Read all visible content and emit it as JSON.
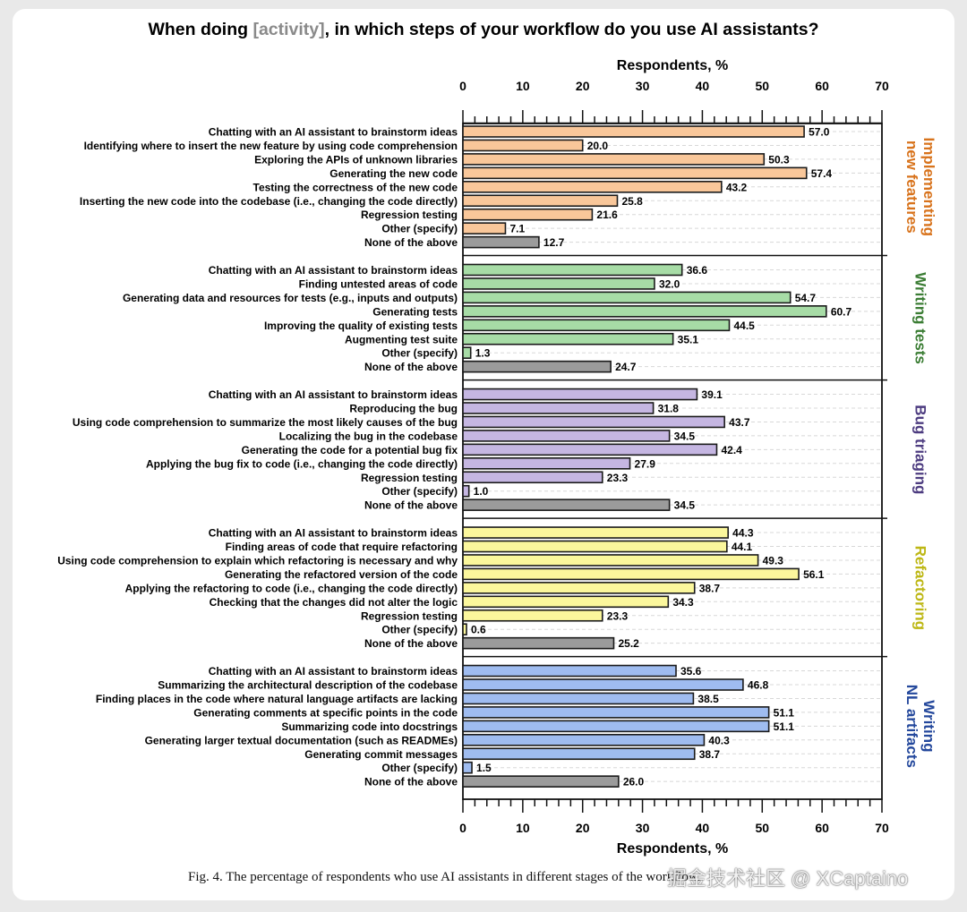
{
  "chart_data": {
    "type": "bar",
    "orientation": "horizontal",
    "title_parts": [
      "When doing ",
      "[activity]",
      ", in which steps of your workflow do you use AI assistants?"
    ],
    "xlabel": "Respondents, %",
    "xlim": [
      0,
      70
    ],
    "xticks": [
      0,
      10,
      20,
      30,
      40,
      50,
      60,
      70
    ],
    "grid": "dashed horizontal",
    "groups": [
      {
        "name": "Implementing new features",
        "label_lines": [
          "Implementing",
          "new features"
        ],
        "color": "#f9c79a",
        "label_color": "#d8731c",
        "categories": [
          "Chatting with an AI assistant to brainstorm ideas",
          "Identifying where to insert the new feature by using code comprehension",
          "Exploring the APIs of unknown libraries",
          "Generating the new code",
          "Testing the correctness of the new code",
          "Inserting the new code into the codebase (i.e., changing the code directly)",
          "Regression testing",
          "Other (specify)",
          "None of the above"
        ],
        "values": [
          57.0,
          20.0,
          50.3,
          57.4,
          43.2,
          25.8,
          21.6,
          7.1,
          12.7
        ]
      },
      {
        "name": "Writing tests",
        "label_lines": [
          "Writing tests"
        ],
        "color": "#a7dca6",
        "label_color": "#3b7d34",
        "categories": [
          "Chatting with an AI assistant to brainstorm ideas",
          "Finding untested areas of code",
          "Generating data and resources for tests (e.g., inputs and outputs)",
          "Generating tests",
          "Improving the quality of existing tests",
          "Augmenting test suite",
          "Other (specify)",
          "None of the above"
        ],
        "values": [
          36.6,
          32.0,
          54.7,
          60.7,
          44.5,
          35.1,
          1.3,
          24.7
        ]
      },
      {
        "name": "Bug triaging",
        "label_lines": [
          "Bug triaging"
        ],
        "color": "#c5b6e2",
        "label_color": "#4d3c80",
        "categories": [
          "Chatting with an AI assistant to brainstorm ideas",
          "Reproducing the bug",
          "Using code comprehension to summarize the most likely causes of the bug",
          "Localizing the bug in the codebase",
          "Generating the code for a potential bug fix",
          "Applying the bug fix to code (i.e., changing the code directly)",
          "Regression testing",
          "Other (specify)",
          "None of the above"
        ],
        "values": [
          39.1,
          31.8,
          43.7,
          34.5,
          42.4,
          27.9,
          23.3,
          1.0,
          34.5
        ]
      },
      {
        "name": "Refactoring",
        "label_lines": [
          "Refactoring"
        ],
        "color": "#fbf79c",
        "label_color": "#bdb714",
        "categories": [
          "Chatting with an AI assistant to brainstorm ideas",
          "Finding areas of code that require refactoring",
          "Using code comprehension to explain which refactoring is necessary and why",
          "Generating the refactored version of the code",
          "Applying the refactoring to code (i.e., changing the code directly)",
          "Checking that the changes did not alter the logic",
          "Regression testing",
          "Other (specify)",
          "None of the above"
        ],
        "values": [
          44.3,
          44.1,
          49.3,
          56.1,
          38.7,
          34.3,
          23.3,
          0.6,
          25.2
        ]
      },
      {
        "name": "Writing NL artifacts",
        "label_lines": [
          "Writing",
          "NL artifacts"
        ],
        "color": "#9fbcf0",
        "label_color": "#24489c",
        "categories": [
          "Chatting with an AI assistant to brainstorm ideas",
          "Summarizing the architectural description of the codebase",
          "Finding places in the code where natural language artifacts are lacking",
          "Generating comments at specific points in the code",
          "Summarizing code into docstrings",
          "Generating larger textual documentation (such as READMEs)",
          "Generating commit messages",
          "Other (specify)",
          "None of the above"
        ],
        "values": [
          35.6,
          46.8,
          38.5,
          51.1,
          51.1,
          40.3,
          38.7,
          1.5,
          26.0
        ]
      }
    ],
    "none_color": "#9b9b9b"
  },
  "caption": "Fig. 4.  The percentage of respondents who use AI assistants in different stages of the workflow.",
  "watermark": "掘金技术社区 @ XCaptaino"
}
